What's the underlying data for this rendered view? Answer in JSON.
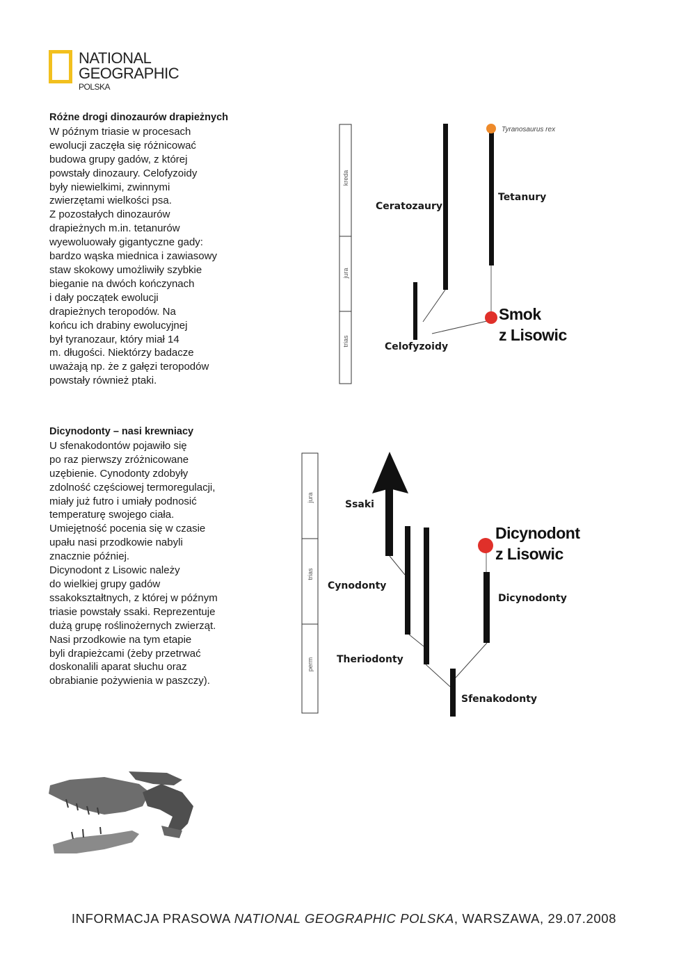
{
  "logo": {
    "line1": "NATIONAL",
    "line2": "GEOGRAPHIC",
    "line3": "POLSKA",
    "brand_color": "#f2c01e"
  },
  "article1": {
    "title": "Różne drogi dinozaurów drapieżnych",
    "body": "W późnym triasie w procesach\newolucji zaczęła się różnicować\nbudowa grupy gadów, z której\npowstały dinozaury. Celofyzoidy\nbyły niewielkimi, zwinnymi\nzwierzętami wielkości psa.\nZ pozostałych dinozaurów\ndrapieżnych m.in. tetanurów\nwyewoluowały gigantyczne gady:\nbardzo wąska miednica i zawiasowy\nstaw skokowy umożliwiły szybkie\nbieganie na dwóch kończynach\ni dały początek ewolucji\ndrapieżnych teropodów. Na\nkońcu ich drabiny ewolucyjnej\nbył tyranozaur, który miał 14\nm. długości. Niektórzy badacze\nuważają np. że z gałęzi teropodów\npowstały również ptaki."
  },
  "article2": {
    "title": "Dicynodonty – nasi krewniacy",
    "body": "U sfenakodontów pojawiło się\npo raz pierwszy zróżnicowane\nuzębienie. Cynodonty zdobyły\nzdolność częściowej termoregulacji,\nmiały już futro i umiały podnosić\ntemperaturę swojego ciała.\nUmiejętność pocenia się w czasie\nupału nasi przodkowie nabyli\nznacznie później.\nDicynodont z Lisowic należy\ndo wielkiej grupy gadów\nssakokształtnych, z której w późnym\ntriasie powstały ssaki. Reprezentuje\ndużą grupę roślinożernych zwierząt.\nNasi przodkowie na tym etapie\nbyli drapieżcami (żeby przetrwać\ndoskonalili aparat słuchu oraz\nobrabianie pożywienia w paszczy)."
  },
  "diagram1": {
    "eras": [
      "kreda",
      "jura",
      "trias"
    ],
    "labels": {
      "ceratozaury": "Ceratozaury",
      "tetanury": "Tetanury",
      "tyranosaurus": "Tyranosaurus rex",
      "celofyzoidy": "Celofyzoidy",
      "smok_line1": "Smok",
      "smok_line2": "z Lisowic"
    },
    "colors": {
      "highlight": "#e0302a",
      "tyrannosaurus": "#ee8a2a"
    }
  },
  "diagram2": {
    "eras": [
      "jura",
      "trias",
      "perm"
    ],
    "labels": {
      "ssaki": "Ssaki",
      "cynodonty": "Cynodonty",
      "theriodonty": "Theriodonty",
      "sfenakodonty": "Sfenakodonty",
      "dicynodonty": "Dicynodonty",
      "dicynodont_line1": "Dicynodont",
      "dicynodont_line2": "z Lisowic"
    },
    "colors": {
      "highlight": "#e0302a"
    }
  },
  "footer": {
    "prefix": "INFORMACJA PRASOWA ",
    "brand": "NATIONAL GEOGRAPHIC POLSKA",
    "suffix": ", WARSZAWA, 29.07.2008"
  }
}
